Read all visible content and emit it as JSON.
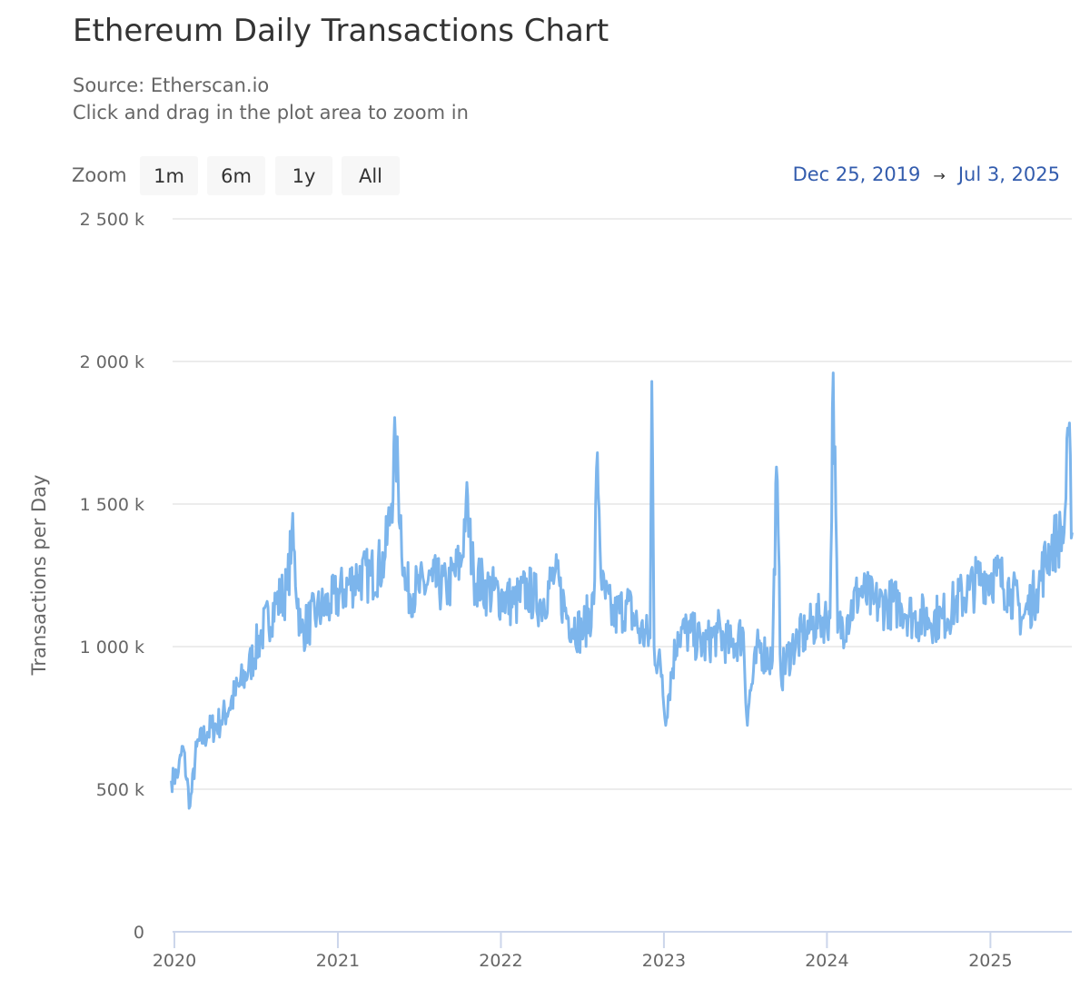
{
  "chart_data": {
    "type": "line",
    "title": "Ethereum Daily Transactions Chart",
    "subtitle": "Source: Etherscan.io",
    "hint": "Click and drag in the plot area to zoom in",
    "xlabel": "",
    "ylabel": "Transactions per Day",
    "ylim": [
      0,
      2500000
    ],
    "yticks": [
      0,
      500000,
      1000000,
      1500000,
      2000000,
      2500000
    ],
    "ytick_labels": [
      "0",
      "500 k",
      "1 000 k",
      "1 500 k",
      "2 000 k",
      "2 500 k"
    ],
    "xticks": [
      "2020",
      "2021",
      "2022",
      "2023",
      "2024",
      "2025"
    ],
    "grid": true,
    "legend": "none",
    "color": "#7cb5ec",
    "series": [
      {
        "name": "Transactions per Day",
        "points": [
          [
            "2019-12-25",
            530000
          ],
          [
            "2020-01-10",
            560000
          ],
          [
            "2020-01-20",
            650000
          ],
          [
            "2020-02-05",
            440000
          ],
          [
            "2020-02-20",
            650000
          ],
          [
            "2020-03-15",
            700000
          ],
          [
            "2020-04-15",
            740000
          ],
          [
            "2020-05-15",
            830000
          ],
          [
            "2020-06-15",
            920000
          ],
          [
            "2020-07-15",
            1050000
          ],
          [
            "2020-08-15",
            1150000
          ],
          [
            "2020-09-10",
            1200000
          ],
          [
            "2020-09-20",
            1400000
          ],
          [
            "2020-10-10",
            1050000
          ],
          [
            "2020-11-15",
            1120000
          ],
          [
            "2020-12-15",
            1150000
          ],
          [
            "2021-01-15",
            1200000
          ],
          [
            "2021-02-15",
            1250000
          ],
          [
            "2021-03-15",
            1250000
          ],
          [
            "2021-04-15",
            1300000
          ],
          [
            "2021-05-01",
            1500000
          ],
          [
            "2021-05-10",
            1720000
          ],
          [
            "2021-06-01",
            1200000
          ],
          [
            "2021-07-01",
            1200000
          ],
          [
            "2021-08-01",
            1230000
          ],
          [
            "2021-09-01",
            1200000
          ],
          [
            "2021-10-05",
            1300000
          ],
          [
            "2021-10-15",
            1510000
          ],
          [
            "2021-11-01",
            1250000
          ],
          [
            "2021-12-01",
            1200000
          ],
          [
            "2022-01-01",
            1180000
          ],
          [
            "2022-02-01",
            1150000
          ],
          [
            "2022-03-01",
            1200000
          ],
          [
            "2022-04-01",
            1150000
          ],
          [
            "2022-05-01",
            1250000
          ],
          [
            "2022-06-01",
            1100000
          ],
          [
            "2022-07-01",
            1050000
          ],
          [
            "2022-07-28",
            1150000
          ],
          [
            "2022-08-05",
            1680000
          ],
          [
            "2022-08-15",
            1200000
          ],
          [
            "2022-09-10",
            1100000
          ],
          [
            "2022-10-10",
            1150000
          ],
          [
            "2022-11-10",
            1050000
          ],
          [
            "2022-12-01",
            1030000
          ],
          [
            "2022-12-05",
            1930000
          ],
          [
            "2022-12-10",
            1000000
          ],
          [
            "2022-12-28",
            900000
          ],
          [
            "2023-01-03",
            750000
          ],
          [
            "2023-02-01",
            1050000
          ],
          [
            "2023-03-01",
            1050000
          ],
          [
            "2023-04-01",
            1000000
          ],
          [
            "2023-05-01",
            1050000
          ],
          [
            "2023-06-01",
            1000000
          ],
          [
            "2023-06-28",
            1050000
          ],
          [
            "2023-07-05",
            760000
          ],
          [
            "2023-08-01",
            1000000
          ],
          [
            "2023-09-01",
            950000
          ],
          [
            "2023-09-10",
            1630000
          ],
          [
            "2023-09-20",
            900000
          ],
          [
            "2023-10-15",
            1000000
          ],
          [
            "2023-11-15",
            1050000
          ],
          [
            "2023-12-15",
            1100000
          ],
          [
            "2024-01-08",
            1100000
          ],
          [
            "2024-01-15",
            1960000
          ],
          [
            "2024-01-25",
            1050000
          ],
          [
            "2024-02-15",
            1100000
          ],
          [
            "2024-03-15",
            1200000
          ],
          [
            "2024-04-15",
            1150000
          ],
          [
            "2024-05-15",
            1150000
          ],
          [
            "2024-06-15",
            1150000
          ],
          [
            "2024-07-15",
            1100000
          ],
          [
            "2024-08-15",
            1100000
          ],
          [
            "2024-09-15",
            1100000
          ],
          [
            "2024-10-15",
            1150000
          ],
          [
            "2024-11-15",
            1200000
          ],
          [
            "2024-12-15",
            1250000
          ],
          [
            "2025-01-15",
            1250000
          ],
          [
            "2025-02-15",
            1200000
          ],
          [
            "2025-03-15",
            1100000
          ],
          [
            "2025-04-15",
            1200000
          ],
          [
            "2025-05-15",
            1350000
          ],
          [
            "2025-06-15",
            1400000
          ],
          [
            "2025-06-25",
            1750000
          ],
          [
            "2025-07-03",
            1400000
          ]
        ]
      }
    ]
  },
  "controls": {
    "zoom_label": "Zoom",
    "buttons": [
      "1m",
      "6m",
      "1y",
      "All"
    ],
    "range_from": "Dec 25, 2019",
    "range_arrow": "→",
    "range_to": "Jul 3, 2025"
  }
}
